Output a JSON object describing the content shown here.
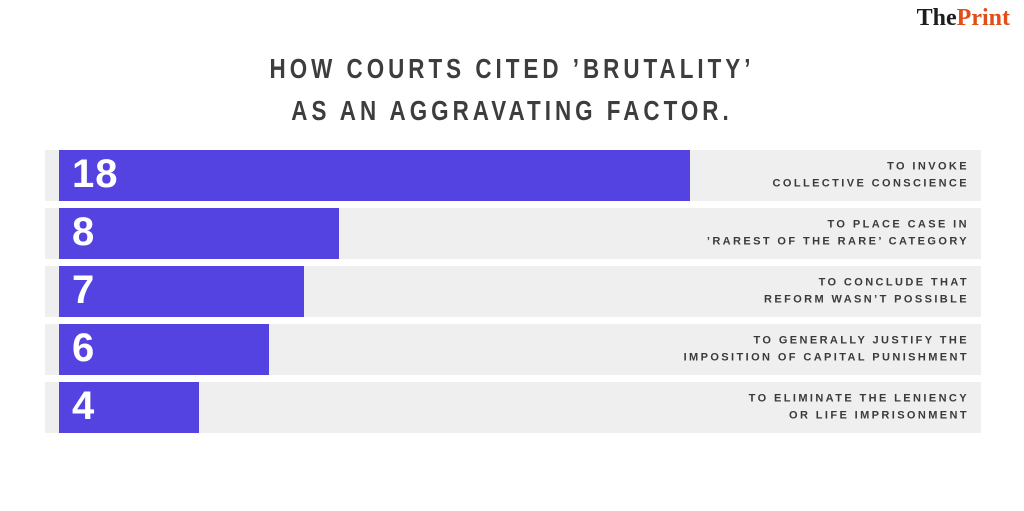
{
  "logo": {
    "the": "The",
    "print": "Print"
  },
  "title": {
    "line1": "HOW COURTS CITED ’BRUTALITY’",
    "line2": "AS AN AGGRAVATING FACTOR."
  },
  "colors": {
    "bar": "#5443e0",
    "row_background": "#efefef",
    "page_background": "#ffffff",
    "title_text": "#3d3d3d",
    "label_text": "#3a3a3a",
    "bar_value_text": "#ffffff",
    "logo_the": "#1d1d1b",
    "logo_print": "#e04e1a"
  },
  "chart_data": {
    "type": "bar",
    "orientation": "horizontal",
    "title": "HOW COURTS CITED ’BRUTALITY’ AS AN AGGRAVATING FACTOR.",
    "categories": [
      "TO INVOKE COLLECTIVE CONSCIENCE",
      "TO PLACE CASE IN ’RAREST OF THE RARE’ CATEGORY",
      "TO CONCLUDE THAT REFORM WASN’T POSSIBLE",
      "TO GENERALLY JUSTIFY THE IMPOSITION OF CAPITAL PUNISHMENT",
      "TO ELIMINATE THE LENIENCY OR LIFE IMPRISONMENT"
    ],
    "values": [
      18,
      8,
      7,
      6,
      4
    ],
    "xlim": [
      0,
      18
    ],
    "grid": false,
    "legend": "none",
    "value_labels": "inside-bar-left",
    "category_labels": "right-aligned",
    "rows": [
      {
        "value": "18",
        "label_line1": "TO INVOKE",
        "label_line2": "COLLECTIVE CONSCIENCE"
      },
      {
        "value": "8",
        "label_line1": "TO PLACE CASE IN",
        "label_line2": "’RAREST OF THE RARE’ CATEGORY"
      },
      {
        "value": "7",
        "label_line1": "TO CONCLUDE THAT",
        "label_line2": "REFORM WASN’T POSSIBLE"
      },
      {
        "value": "6",
        "label_line1": "TO GENERALLY JUSTIFY THE",
        "label_line2": "IMPOSITION OF CAPITAL PUNISHMENT"
      },
      {
        "value": "4",
        "label_line1": "TO ELIMINATE THE LENIENCY",
        "label_line2": "OR LIFE IMPRISONMENT"
      }
    ]
  }
}
